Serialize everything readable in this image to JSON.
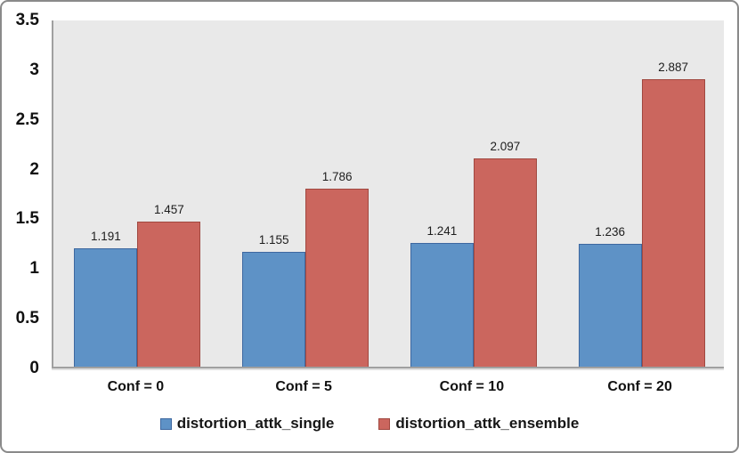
{
  "chart_data": {
    "type": "bar",
    "categories": [
      "Conf = 0",
      "Conf = 5",
      "Conf = 10",
      "Conf = 20"
    ],
    "series": [
      {
        "name": "distortion_attk_single",
        "values": [
          1.191,
          1.155,
          1.241,
          1.236
        ],
        "value_labels": [
          "1.191",
          "1.155",
          "1.241",
          "1.236"
        ],
        "fill": "#5e92c6",
        "border": "#3e68a0"
      },
      {
        "name": "distortion_attk_ensemble",
        "values": [
          1.457,
          1.786,
          2.097,
          2.887
        ],
        "value_labels": [
          "1.457",
          "1.786",
          "2.097",
          "2.887"
        ],
        "fill": "#cb665e",
        "border": "#a04840"
      }
    ],
    "title": "",
    "xlabel": "",
    "ylabel": "",
    "ylim": [
      0,
      3.5
    ],
    "yticks": [
      0,
      0.5,
      1,
      1.5,
      2,
      2.5,
      3,
      3.5
    ],
    "ytick_labels": [
      "0",
      "0.5",
      "1",
      "1.5",
      "2",
      "2.5",
      "3",
      "3.5"
    ],
    "grid": false,
    "data_labels": true,
    "legend_position": "bottom",
    "plot_bg": "#e9e9e9",
    "axis_color": "#a0a0a0"
  }
}
